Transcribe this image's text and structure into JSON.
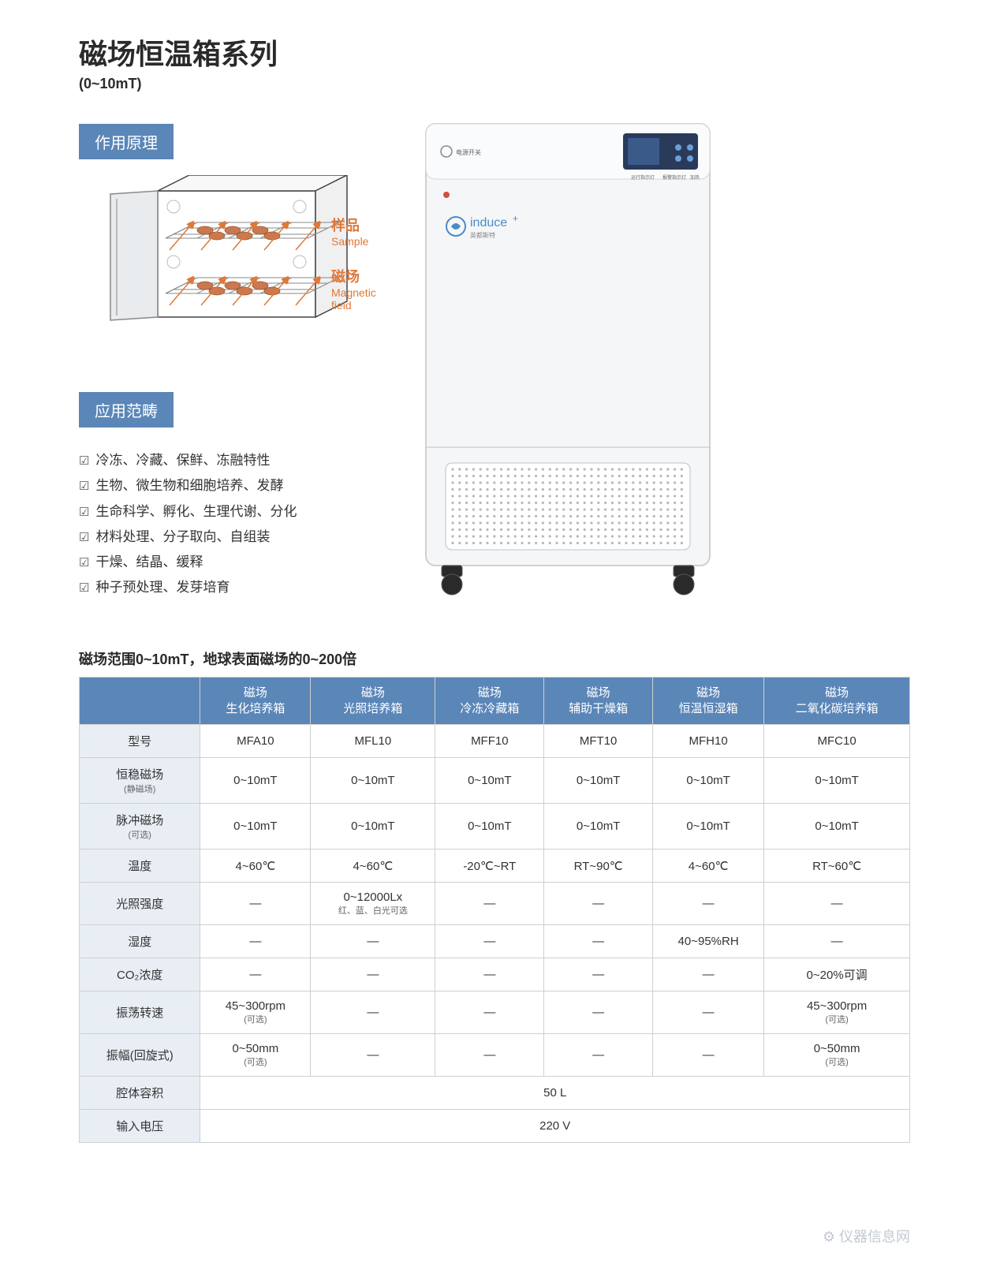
{
  "title": {
    "main": "磁场恒温箱系列",
    "sub": "(0~10mT)"
  },
  "sections": {
    "principle": "作用原理",
    "application": "应用范畴"
  },
  "diagram": {
    "sample_cn": "样品",
    "sample_en": "Sample",
    "field_cn": "磁场",
    "field_en": "Magnetic field",
    "colors": {
      "outline": "#444444",
      "door": "#a8b0b8",
      "arrow": "#e07838",
      "tray": "#888888",
      "sample": "#c97850"
    }
  },
  "product": {
    "brand": "induce⁺",
    "colors": {
      "body": "#f5f6f7",
      "panel": "#2a3a5a",
      "accent": "#4a8cc8",
      "grille": "#b8b8b8"
    }
  },
  "applications": [
    "冷冻、冷藏、保鲜、冻融特性",
    "生物、微生物和细胞培养、发酵",
    "生命科学、孵化、生理代谢、分化",
    "材料处理、分子取向、自组装",
    "干燥、结晶、缓释",
    "种子预处理、发芽培育"
  ],
  "table": {
    "caption": "磁场范围0~10mT，地球表面磁场的0~200倍",
    "corner": "",
    "columns": [
      {
        "line1": "磁场",
        "line2": "生化培养箱"
      },
      {
        "line1": "磁场",
        "line2": "光照培养箱"
      },
      {
        "line1": "磁场",
        "line2": "冷冻冷藏箱"
      },
      {
        "line1": "磁场",
        "line2": "辅助干燥箱"
      },
      {
        "line1": "磁场",
        "line2": "恒温恒湿箱"
      },
      {
        "line1": "磁场",
        "line2": "二氧化碳培养箱"
      }
    ],
    "rows": [
      {
        "label": "型号",
        "sub": "",
        "cells": [
          "MFA10",
          "MFL10",
          "MFF10",
          "MFT10",
          "MFH10",
          "MFC10"
        ]
      },
      {
        "label": "恒稳磁场",
        "sub": "(静磁场)",
        "cells": [
          "0~10mT",
          "0~10mT",
          "0~10mT",
          "0~10mT",
          "0~10mT",
          "0~10mT"
        ]
      },
      {
        "label": "脉冲磁场",
        "sub": "(可选)",
        "cells": [
          "0~10mT",
          "0~10mT",
          "0~10mT",
          "0~10mT",
          "0~10mT",
          "0~10mT"
        ]
      },
      {
        "label": "温度",
        "sub": "",
        "cells": [
          "4~60℃",
          "4~60℃",
          "-20℃~RT",
          "RT~90℃",
          "4~60℃",
          "RT~60℃"
        ]
      },
      {
        "label": "光照强度",
        "sub": "",
        "cells": [
          "—",
          "0~12000Lx|红、蓝、白光可选",
          "—",
          "—",
          "—",
          "—"
        ]
      },
      {
        "label": "湿度",
        "sub": "",
        "cells": [
          "—",
          "—",
          "—",
          "—",
          "40~95%RH",
          "—"
        ]
      },
      {
        "label": "CO₂浓度",
        "sub": "",
        "cells": [
          "—",
          "—",
          "—",
          "—",
          "—",
          "0~20%可调"
        ]
      },
      {
        "label": "振荡转速",
        "sub": "",
        "cells": [
          "45~300rpm|(可选)",
          "—",
          "—",
          "—",
          "—",
          "45~300rpm|(可选)"
        ]
      },
      {
        "label": "振幅(回旋式)",
        "sub": "",
        "cells": [
          "0~50mm|(可选)",
          "—",
          "—",
          "—",
          "—",
          "0~50mm|(可选)"
        ]
      }
    ],
    "span_rows": [
      {
        "label": "腔体容积",
        "value": "50 L"
      },
      {
        "label": "输入电压",
        "value": "220 V"
      }
    ]
  },
  "colors": {
    "badge_bg": "#5b86b8",
    "badge_text": "#ffffff",
    "table_header_bg": "#5b86b8",
    "table_label_bg": "#e8eef4",
    "border": "#d0d0d0",
    "title": "#2a2a2a",
    "accent": "#e07838"
  },
  "watermark": "仪器信息网"
}
